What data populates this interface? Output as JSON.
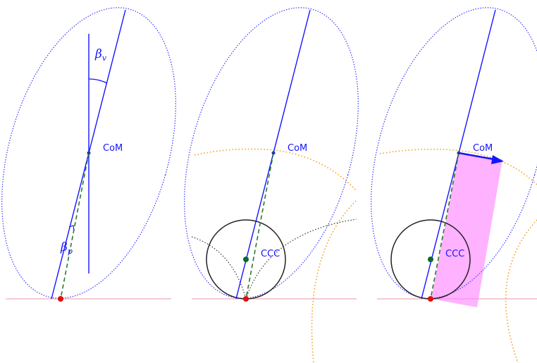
{
  "panels": [
    {
      "id": "left",
      "labels": {
        "com": "CoM",
        "beta_v": "β",
        "beta_v_sub": "v",
        "beta_p": "β",
        "beta_p_sub": "p"
      }
    },
    {
      "id": "middle",
      "labels": {
        "com": "CoM",
        "ccc": "CCC"
      }
    },
    {
      "id": "right",
      "labels": {
        "com": "CoM",
        "ccc": "CCC"
      }
    }
  ],
  "colors": {
    "axis": "#1515ff",
    "ellipse": "#3a3aff",
    "ground": "#f4b8c4",
    "contact_point": "#e01010",
    "ccc_point": "#0a6b2a",
    "dashed": "#2a7a2a",
    "arc_orange": "#f0a020",
    "arc_black": "#222222",
    "region": "#ff88ff",
    "label": "#1515ff"
  }
}
